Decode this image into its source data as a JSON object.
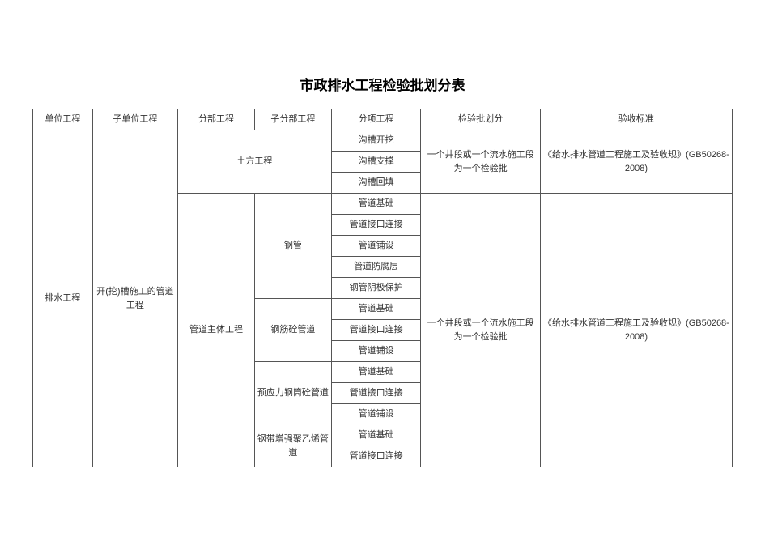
{
  "title": "市政排水工程检验批划分表",
  "headers": {
    "c1": "单位工程",
    "c2": "子单位工程",
    "c3": "分部工程",
    "c4": "子分部工程",
    "c5": "分项工程",
    "c6": "检验批划分",
    "c7": "验收标准"
  },
  "col1": {
    "unit": "排水工程"
  },
  "col2": {
    "sub_unit": "开(挖)槽施工的管道工程"
  },
  "col3": {
    "earth": "土方工程",
    "pipe_main": "管道主体工程"
  },
  "col4": {
    "steel": "钢管",
    "rc": "钢筋砼管道",
    "pre": "预应力钢筒砼管道",
    "pe": "钢带增强聚乙烯管道"
  },
  "col5": {
    "r1": "沟槽开挖",
    "r2": "沟槽支撑",
    "r3": "沟槽回填",
    "r4": "管道基础",
    "r5": "管道接口连接",
    "r6": "管道铺设",
    "r7": "管道防腐层",
    "r8": "钢管阴极保护",
    "r9": "管道基础",
    "r10": "管道接口连接",
    "r11": "管道铺设",
    "r12": "管道基础",
    "r13": "管道接口连接",
    "r14": "管道铺设",
    "r15": "管道基础",
    "r16": "管道接口连接"
  },
  "col6": {
    "batch1": "一个井段或一个流水施工段为一个检验批",
    "batch2": "一个井段或一个流水施工段为一个检验批"
  },
  "col7": {
    "std1": "《给水排水管道工程施工及验收规》(GB50268-2008)",
    "std2": "《给水排水管道工程施工及验收规》(GB50268-2008)"
  }
}
